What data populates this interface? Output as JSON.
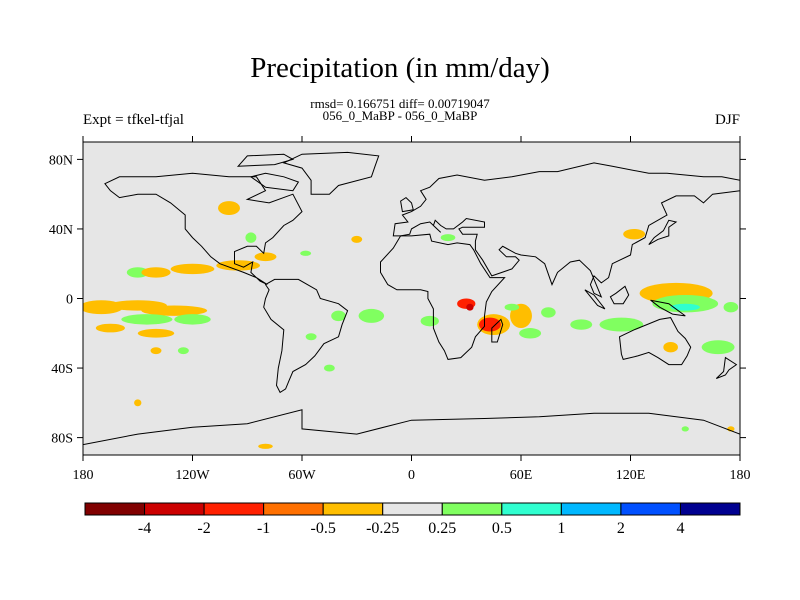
{
  "header": {
    "title": "Precipitation (in mm/day)",
    "stats": "rmsd= 0.166751 diff= 0.00719047",
    "experiment_compare": "056_0_MaBP - 056_0_MaBP",
    "expt_label": "Expt = tfkel-tfjal",
    "season": "DJF"
  },
  "colors": {
    "land_ocean_background": "#e6e6e6",
    "coast": "#000000"
  },
  "map": {
    "lon_range": [
      -180,
      180
    ],
    "lat_range": [
      -90,
      90
    ],
    "lon_ticks": [
      {
        "value": -180,
        "label": "180"
      },
      {
        "value": -120,
        "label": "120W"
      },
      {
        "value": -60,
        "label": "60W"
      },
      {
        "value": 0,
        "label": "0"
      },
      {
        "value": 60,
        "label": "60E"
      },
      {
        "value": 120,
        "label": "120E"
      },
      {
        "value": 180,
        "label": "180"
      }
    ],
    "lat_ticks": [
      {
        "value": 80,
        "label": "80N"
      },
      {
        "value": 40,
        "label": "40N"
      },
      {
        "value": 0,
        "label": "0"
      },
      {
        "value": -40,
        "label": "40S"
      },
      {
        "value": -80,
        "label": "80S"
      }
    ],
    "anomaly_patches": [
      {
        "lon": -170,
        "lat": -5,
        "rx": 12,
        "ry": 4,
        "level": -0.5
      },
      {
        "lon": -150,
        "lat": -4,
        "rx": 16,
        "ry": 3,
        "level": -0.5
      },
      {
        "lon": -130,
        "lat": -7,
        "rx": 18,
        "ry": 3,
        "level": -0.5
      },
      {
        "lon": -145,
        "lat": -12,
        "rx": 14,
        "ry": 3,
        "level": 0.5
      },
      {
        "lon": -120,
        "lat": -12,
        "rx": 10,
        "ry": 3,
        "level": 0.5
      },
      {
        "lon": -165,
        "lat": -17,
        "rx": 8,
        "ry": 2.5,
        "level": -0.5
      },
      {
        "lon": -140,
        "lat": -20,
        "rx": 10,
        "ry": 2.5,
        "level": -0.5
      },
      {
        "lon": -150,
        "lat": 15,
        "rx": 6,
        "ry": 3,
        "level": 0.5
      },
      {
        "lon": -140,
        "lat": 15,
        "rx": 8,
        "ry": 3,
        "level": -0.5
      },
      {
        "lon": -120,
        "lat": 17,
        "rx": 12,
        "ry": 3,
        "level": -0.5
      },
      {
        "lon": -95,
        "lat": 19,
        "rx": 12,
        "ry": 3,
        "level": -0.5
      },
      {
        "lon": -80,
        "lat": 24,
        "rx": 6,
        "ry": 2.5,
        "level": -0.5
      },
      {
        "lon": -100,
        "lat": 52,
        "rx": 6,
        "ry": 4,
        "level": -0.5
      },
      {
        "lon": -88,
        "lat": 35,
        "rx": 3,
        "ry": 3,
        "level": 0.5
      },
      {
        "lon": -22,
        "lat": -10,
        "rx": 7,
        "ry": 4,
        "level": 0.5
      },
      {
        "lon": -40,
        "lat": -10,
        "rx": 4,
        "ry": 3,
        "level": 0.5
      },
      {
        "lon": 10,
        "lat": -13,
        "rx": 5,
        "ry": 3,
        "level": 0.5
      },
      {
        "lon": 30,
        "lat": -3,
        "rx": 5,
        "ry": 3,
        "level": -1
      },
      {
        "lon": 32,
        "lat": -5,
        "rx": 2,
        "ry": 2,
        "level": -2
      },
      {
        "lon": 45,
        "lat": -15,
        "rx": 9,
        "ry": 6,
        "level": -0.5
      },
      {
        "lon": 43,
        "lat": -15,
        "rx": 6,
        "ry": 4,
        "level": -1
      },
      {
        "lon": 60,
        "lat": -10,
        "rx": 6,
        "ry": 7,
        "level": -0.5
      },
      {
        "lon": 55,
        "lat": -5,
        "rx": 4,
        "ry": 2,
        "level": 0.5
      },
      {
        "lon": 65,
        "lat": -20,
        "rx": 6,
        "ry": 3,
        "level": 0.5
      },
      {
        "lon": 75,
        "lat": -8,
        "rx": 4,
        "ry": 3,
        "level": 0.5
      },
      {
        "lon": 93,
        "lat": -15,
        "rx": 6,
        "ry": 3,
        "level": 0.5
      },
      {
        "lon": 115,
        "lat": -15,
        "rx": 12,
        "ry": 4,
        "level": 0.5
      },
      {
        "lon": 145,
        "lat": 3,
        "rx": 20,
        "ry": 6,
        "level": -0.5
      },
      {
        "lon": 150,
        "lat": -3,
        "rx": 18,
        "ry": 5,
        "level": 0.5
      },
      {
        "lon": 150,
        "lat": -5,
        "rx": 8,
        "ry": 2,
        "level": 1
      },
      {
        "lon": 175,
        "lat": -5,
        "rx": 4,
        "ry": 3,
        "level": 0.5
      },
      {
        "lon": 168,
        "lat": -28,
        "rx": 9,
        "ry": 4,
        "level": 0.5
      },
      {
        "lon": 142,
        "lat": -28,
        "rx": 4,
        "ry": 3,
        "level": -0.5
      },
      {
        "lon": 122,
        "lat": 37,
        "rx": 6,
        "ry": 3,
        "level": -0.5
      },
      {
        "lon": 20,
        "lat": 35,
        "rx": 4,
        "ry": 2,
        "level": 0.5
      },
      {
        "lon": -30,
        "lat": 34,
        "rx": 3,
        "ry": 2,
        "level": -0.5
      },
      {
        "lon": -58,
        "lat": 26,
        "rx": 3,
        "ry": 1.5,
        "level": 0.5
      },
      {
        "lon": -55,
        "lat": -22,
        "rx": 3,
        "ry": 2,
        "level": 0.5
      },
      {
        "lon": -45,
        "lat": -40,
        "rx": 3,
        "ry": 2,
        "level": 0.5
      },
      {
        "lon": -140,
        "lat": -30,
        "rx": 3,
        "ry": 2,
        "level": -0.5
      },
      {
        "lon": -125,
        "lat": -30,
        "rx": 3,
        "ry": 2,
        "level": 0.5
      },
      {
        "lon": -150,
        "lat": -60,
        "rx": 2,
        "ry": 2,
        "level": -0.5
      },
      {
        "lon": 150,
        "lat": -75,
        "rx": 2,
        "ry": 1.5,
        "level": 0.5
      },
      {
        "lon": 175,
        "lat": -75,
        "rx": 2,
        "ry": 1.5,
        "level": -0.5
      },
      {
        "lon": -80,
        "lat": -85,
        "rx": 4,
        "ry": 1.5,
        "level": -0.5
      }
    ]
  },
  "colorbar": {
    "colors": [
      "#800000",
      "#cc0000",
      "#ff2000",
      "#ff7000",
      "#ffbe00",
      "#e6e6e6",
      "#80ff60",
      "#30ffd0",
      "#00b8ff",
      "#0050ff",
      "#000090"
    ],
    "tick_labels": [
      "-4",
      "-2",
      "-1",
      "-0.5",
      "-0.25",
      "0.25",
      "0.5",
      "1",
      "2",
      "4"
    ],
    "level_colors": {
      "-4": "#800000",
      "-2": "#cc0000",
      "-1": "#ff2000",
      "-0.5": "#ffbe00",
      "0.5": "#80ff60",
      "1": "#30ffd0",
      "2": "#00b8ff",
      "4": "#0050ff"
    }
  }
}
